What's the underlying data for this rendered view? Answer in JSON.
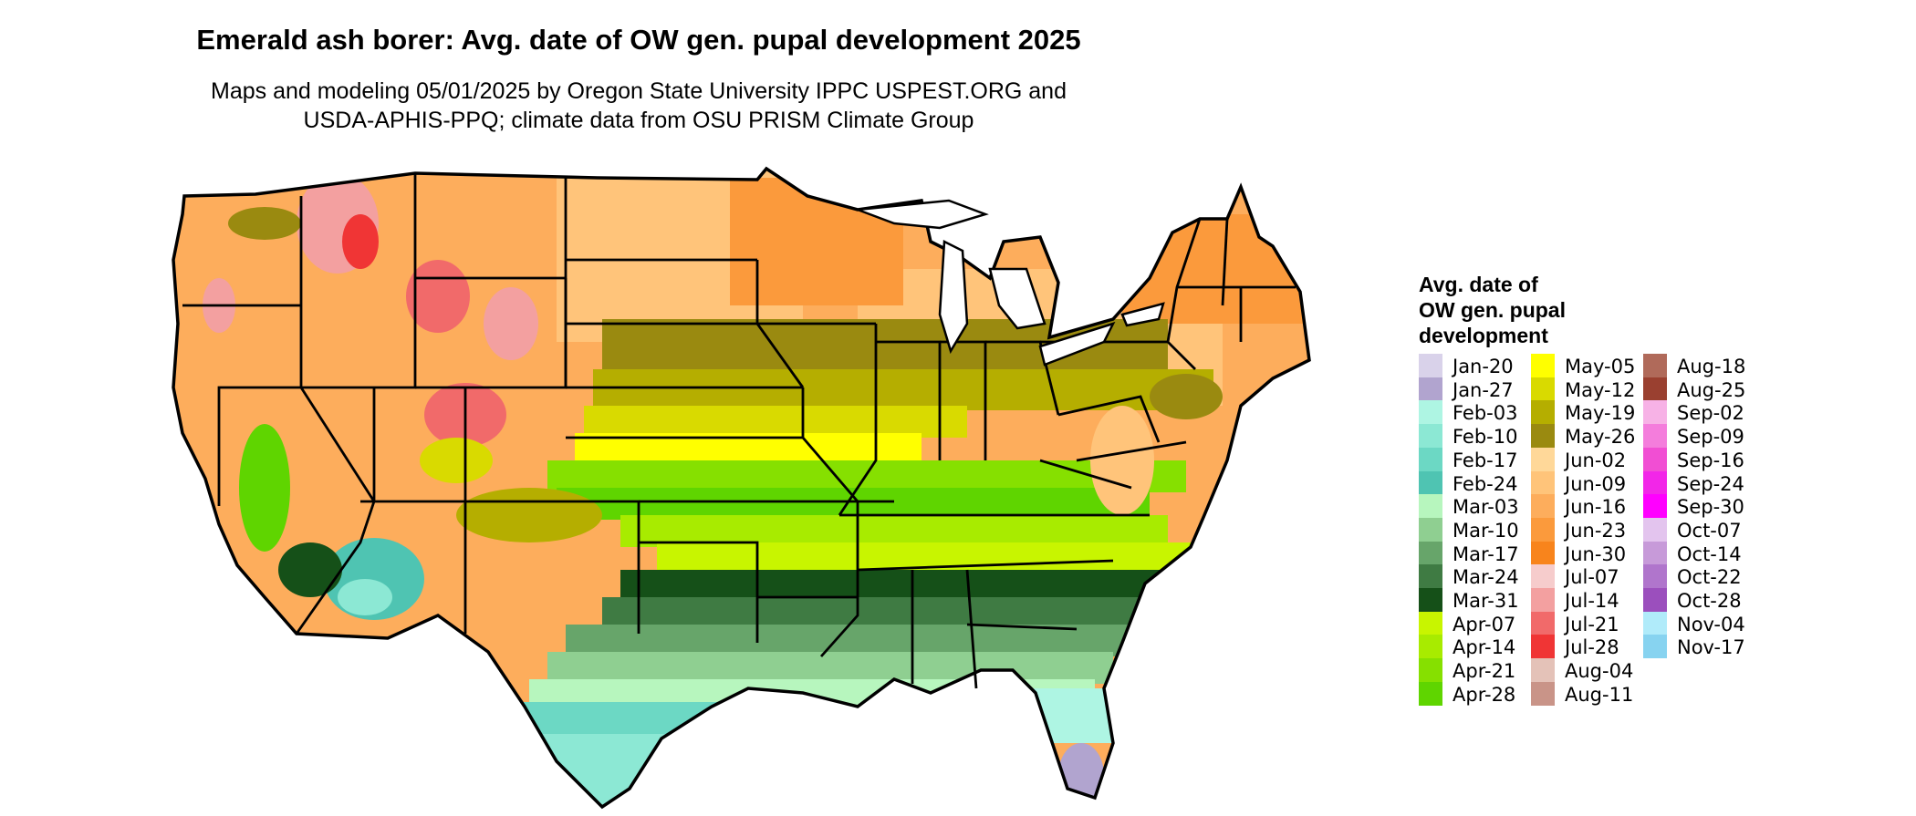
{
  "title": "Emerald ash borer: Avg. date of OW gen. pupal development 2025",
  "subtitle_line1": "Maps and modeling 05/01/2025 by Oregon State University IPPC USPEST.ORG and",
  "subtitle_line2": "USDA-APHIS-PPQ; climate data from OSU PRISM Climate Group",
  "legend": {
    "title_lines": [
      "Avg. date of",
      "OW gen. pupal",
      "development"
    ],
    "columns": [
      [
        {
          "label": "Jan-20",
          "color": "#d9d2ea"
        },
        {
          "label": "Jan-27",
          "color": "#b1a4cf"
        },
        {
          "label": "Feb-03",
          "color": "#aef5e3"
        },
        {
          "label": "Feb-10",
          "color": "#8ce8d4"
        },
        {
          "label": "Feb-17",
          "color": "#6cd8c4"
        },
        {
          "label": "Feb-24",
          "color": "#4fc4b2"
        },
        {
          "label": "Mar-03",
          "color": "#b7f6be"
        },
        {
          "label": "Mar-10",
          "color": "#8fcf91"
        },
        {
          "label": "Mar-17",
          "color": "#67a56a"
        },
        {
          "label": "Mar-24",
          "color": "#3f7b43"
        },
        {
          "label": "Mar-31",
          "color": "#155018"
        },
        {
          "label": "Apr-07",
          "color": "#c8f500"
        },
        {
          "label": "Apr-14",
          "color": "#a8eb00"
        },
        {
          "label": "Apr-21",
          "color": "#86e000"
        },
        {
          "label": "Apr-28",
          "color": "#5fd500"
        }
      ],
      [
        {
          "label": "May-05",
          "color": "#ffff00"
        },
        {
          "label": "May-12",
          "color": "#d9da00"
        },
        {
          "label": "May-19",
          "color": "#b5ae00"
        },
        {
          "label": "May-26",
          "color": "#9a8a10"
        },
        {
          "label": "Jun-02",
          "color": "#ffd899"
        },
        {
          "label": "Jun-09",
          "color": "#ffc47a"
        },
        {
          "label": "Jun-16",
          "color": "#fdad5c"
        },
        {
          "label": "Jun-23",
          "color": "#fb9a3c"
        },
        {
          "label": "Jun-30",
          "color": "#f8841c"
        },
        {
          "label": "Jul-07",
          "color": "#f6cccc"
        },
        {
          "label": "Jul-14",
          "color": "#f3a0a0"
        },
        {
          "label": "Jul-21",
          "color": "#f16a6a"
        },
        {
          "label": "Jul-28",
          "color": "#f03535"
        },
        {
          "label": "Aug-04",
          "color": "#e4c2b8"
        },
        {
          "label": "Aug-11",
          "color": "#c99488"
        }
      ],
      [
        {
          "label": "Aug-18",
          "color": "#b06a5a"
        },
        {
          "label": "Aug-25",
          "color": "#9a4030"
        },
        {
          "label": "Sep-02",
          "color": "#f7b2e6"
        },
        {
          "label": "Sep-09",
          "color": "#f47ddc"
        },
        {
          "label": "Sep-16",
          "color": "#f14ed3"
        },
        {
          "label": "Sep-24",
          "color": "#f226e8"
        },
        {
          "label": "Sep-30",
          "color": "#ff00ff"
        },
        {
          "label": "Oct-07",
          "color": "#e3c4ee"
        },
        {
          "label": "Oct-14",
          "color": "#c79ad9"
        },
        {
          "label": "Oct-22",
          "color": "#b075cc"
        },
        {
          "label": "Oct-28",
          "color": "#9b4fbd"
        },
        {
          "label": "Nov-04",
          "color": "#b0ebfa"
        },
        {
          "label": "Nov-17",
          "color": "#87d3f0"
        }
      ]
    ]
  }
}
